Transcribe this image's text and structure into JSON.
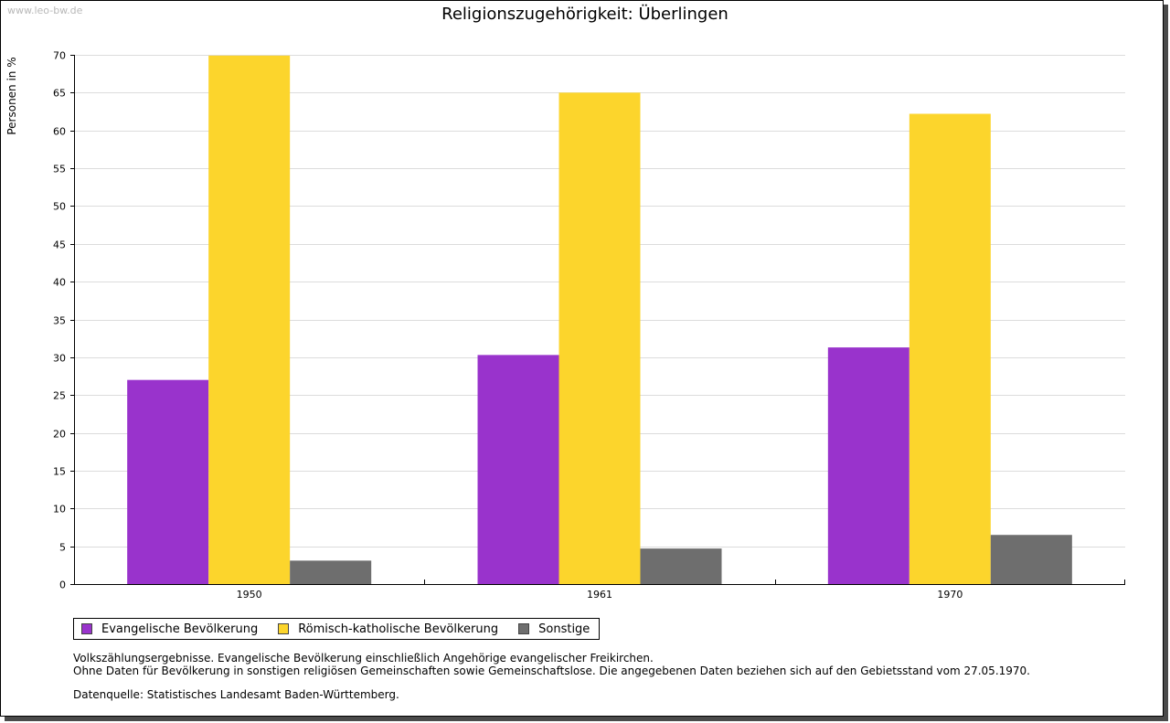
{
  "watermark": "www.leo-bw.de",
  "chart_data": {
    "type": "bar",
    "title": "Religionszugehörigkeit: Überlingen",
    "xlabel": "",
    "ylabel": "Personen in %",
    "ylim": [
      0,
      70
    ],
    "ytick_step": 5,
    "grid": true,
    "categories": [
      "1950",
      "1961",
      "1970"
    ],
    "series": [
      {
        "name": "Evangelische Bevölkerung",
        "color": "#9933cc",
        "values": [
          27.0,
          30.3,
          31.3
        ]
      },
      {
        "name": "Römisch-katholische Bevölkerung",
        "color": "#fcd52c",
        "values": [
          69.9,
          65.0,
          62.2
        ]
      },
      {
        "name": "Sonstige",
        "color": "#6e6e6e",
        "values": [
          3.1,
          4.7,
          6.5
        ]
      }
    ]
  },
  "notes": {
    "line1": "Volkszählungsergebnisse. Evangelische Bevölkerung einschließlich Angehörige evangelischer Freikirchen.",
    "line2": "Ohne Daten für Bevölkerung in sonstigen religiösen Gemeinschaften sowie Gemeinschaftslose. Die angegebenen Daten beziehen sich auf den Gebietsstand vom 27.05.1970.",
    "source": "Datenquelle: Statistisches Landesamt Baden-Württemberg."
  }
}
